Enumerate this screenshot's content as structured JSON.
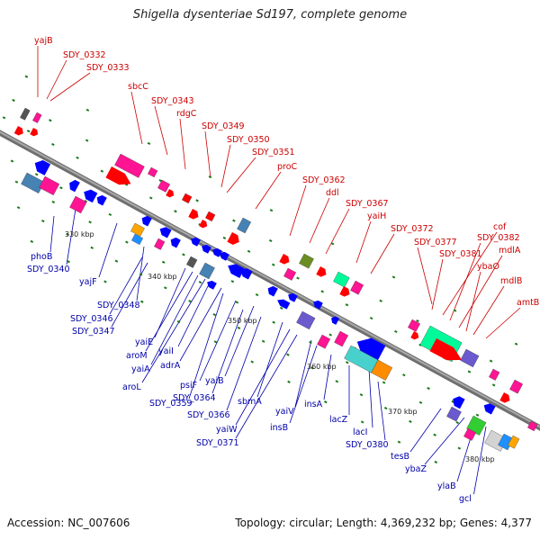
{
  "title": "Shigella dysenteriae Sd197, complete genome",
  "footer": {
    "accession": "Accession: NC_007606",
    "stats": "Topology: circular; Length: 4,369,232 bp; Genes: 4,377"
  },
  "colors": {
    "backbone": "#8a8a8a",
    "forward_label": "#cc0000",
    "reverse_label": "#0000aa",
    "marker": "#1a7a1a"
  },
  "ticks": [
    "330 kbp",
    "340 kbp",
    "350 kbp",
    "360 kbp",
    "370 kbp",
    "380 kbp"
  ],
  "forward_labels": [
    "yajB",
    "SDY_0332",
    "SDY_0333",
    "sbcC",
    "SDY_0343",
    "rdgC",
    "SDY_0349",
    "SDY_0350",
    "SDY_0351",
    "proC",
    "SDY_0362",
    "ddl",
    "SDY_0367",
    "yaiH",
    "SDY_0372",
    "SDY_0377",
    "cof",
    "SDY_0382",
    "SDY_0381",
    "mdlA",
    "ybaO",
    "mdlB",
    "amtB"
  ],
  "reverse_labels": [
    "phoB",
    "SDY_0340",
    "yajF",
    "SDY_0348",
    "SDY_0346",
    "SDY_0347",
    "yaiE",
    "aroM",
    "yaiA",
    "aroL",
    "yaiI",
    "adrA",
    "SDY_0359",
    "psiF",
    "yaiB",
    "SDY_0364",
    "SDY_0366",
    "sbmA",
    "yaiW",
    "SDY_0371",
    "yaiV",
    "insB",
    "insA",
    "lacZ",
    "lacI",
    "SDY_0380",
    "tesB",
    "ybaZ",
    "ylaB",
    "gcl"
  ]
}
